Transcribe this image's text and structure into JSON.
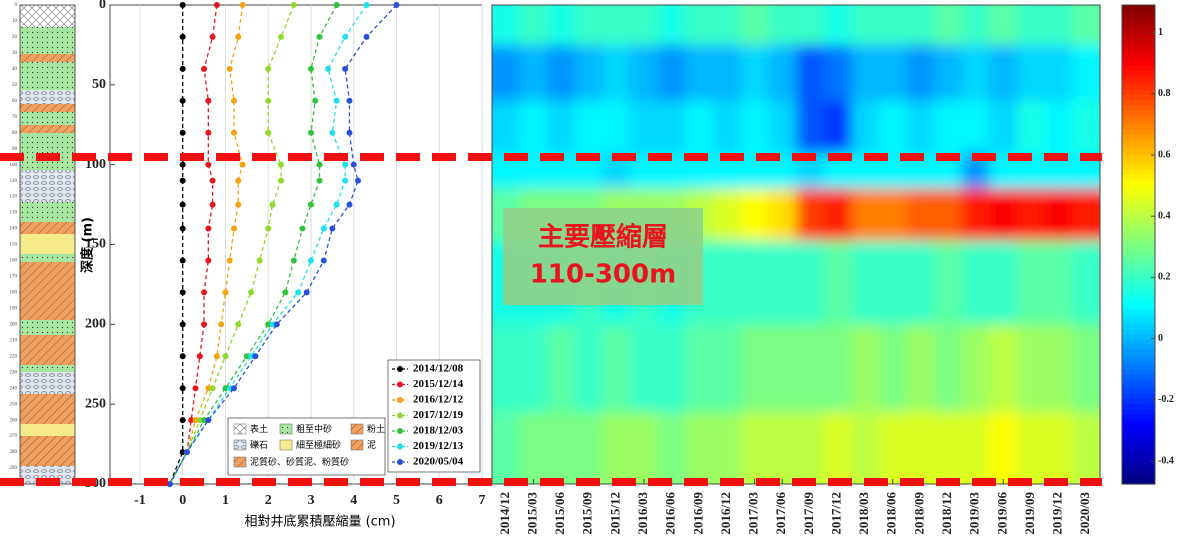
{
  "chart_data": [
    {
      "type": "line",
      "xlabel": "相對井底累積壓縮量 (cm)",
      "ylabel": "深度 (m)",
      "depths": [
        0,
        20,
        40,
        60,
        80,
        100,
        110,
        125,
        140,
        160,
        180,
        200,
        220,
        240,
        260,
        280,
        300
      ],
      "xlim": [
        -1.7,
        7
      ],
      "xticks": [
        -1,
        0,
        1,
        2,
        3,
        4,
        5,
        6,
        7
      ],
      "ylim": [
        0,
        300
      ],
      "yticks": [
        0,
        50,
        100,
        150,
        200,
        250,
        300
      ],
      "grid": true,
      "legend": "lower right",
      "series": [
        {
          "name": "2014/12/08",
          "color": "#000000",
          "values": [
            0,
            0,
            0,
            0,
            0,
            0,
            0,
            0,
            0,
            0,
            0,
            0,
            0,
            0,
            0,
            0,
            -0.3
          ]
        },
        {
          "name": "2015/12/14",
          "color": "#e8141e",
          "values": [
            0.8,
            0.7,
            0.5,
            0.6,
            0.6,
            0.6,
            0.7,
            0.7,
            0.6,
            0.6,
            0.5,
            0.5,
            0.4,
            0.3,
            0.2,
            0.1,
            -0.3
          ]
        },
        {
          "name": "2016/12/12",
          "color": "#f5a310",
          "values": [
            1.4,
            1.3,
            1.1,
            1.2,
            1.2,
            1.4,
            1.3,
            1.3,
            1.2,
            1.1,
            1.0,
            0.9,
            0.8,
            0.6,
            0.3,
            0.1,
            -0.3
          ]
        },
        {
          "name": "2017/12/19",
          "color": "#8fd92a",
          "values": [
            2.6,
            2.3,
            2.0,
            2.0,
            2.0,
            2.3,
            2.3,
            2.1,
            2.0,
            1.8,
            1.6,
            1.3,
            1.0,
            0.7,
            0.4,
            0.1,
            -0.3
          ]
        },
        {
          "name": "2018/12/03",
          "color": "#2fc23a",
          "values": [
            3.6,
            3.2,
            3.0,
            3.1,
            3.0,
            3.2,
            3.2,
            3.0,
            2.8,
            2.6,
            2.4,
            2.0,
            1.5,
            1.0,
            0.5,
            0.1,
            -0.3
          ]
        },
        {
          "name": "2019/12/13",
          "color": "#1ee0e8",
          "values": [
            4.3,
            3.8,
            3.4,
            3.6,
            3.5,
            3.8,
            3.8,
            3.6,
            3.3,
            3.0,
            2.7,
            2.1,
            1.6,
            1.1,
            0.6,
            0.1,
            -0.3
          ]
        },
        {
          "name": "2020/05/04",
          "color": "#2a4fd8",
          "values": [
            5.0,
            4.3,
            3.8,
            3.9,
            3.9,
            4.0,
            4.1,
            3.9,
            3.5,
            3.3,
            2.9,
            2.2,
            1.7,
            1.2,
            0.6,
            0.1,
            -0.3
          ]
        }
      ]
    },
    {
      "type": "heatmap",
      "categories": [
        "2014/12",
        "2015/03",
        "2015/06",
        "2015/09",
        "2015/12",
        "2016/03",
        "2016/06",
        "2016/09",
        "2016/12",
        "2017/03",
        "2017/06",
        "2017/09",
        "2017/12",
        "2018/03",
        "2018/06",
        "2018/09",
        "2018/12",
        "2019/03",
        "2019/06",
        "2019/09",
        "2019/12",
        "2020/03"
      ],
      "y": [
        10,
        40,
        80,
        105,
        125,
        170,
        230,
        280
      ],
      "ylim": [
        0,
        300
      ],
      "z": [
        [
          0.15,
          0.2,
          0.15,
          0.2,
          0.2,
          0.2,
          0.15,
          0.2,
          0.2,
          0.25,
          0.2,
          0.2,
          0.15,
          0.2,
          0.2,
          0.2,
          0.25,
          0.2,
          0.25,
          0.2,
          0.2,
          0.25
        ],
        [
          -0.05,
          0,
          -0.05,
          0,
          0.05,
          0,
          -0.05,
          0,
          0,
          0.05,
          0,
          -0.15,
          -0.1,
          0,
          0,
          -0.05,
          0,
          0.05,
          0,
          0.05,
          0.05,
          0.1
        ],
        [
          0.05,
          0.1,
          0.05,
          0.1,
          0.1,
          0.05,
          0.05,
          0.1,
          0.05,
          0.1,
          0.05,
          -0.15,
          -0.2,
          0.05,
          0.1,
          0.05,
          0.1,
          0.1,
          0.05,
          0.15,
          0.1,
          0.15
        ],
        [
          0.1,
          0.1,
          0.1,
          0.1,
          0.05,
          0.1,
          0.1,
          0.1,
          0.1,
          0.1,
          0.1,
          0.05,
          0.1,
          0.1,
          0.1,
          0.1,
          0.1,
          -0.05,
          0.1,
          0.1,
          0.1,
          0.1
        ],
        [
          0.25,
          0.3,
          0.3,
          0.3,
          0.35,
          0.35,
          0.35,
          0.4,
          0.45,
          0.5,
          0.55,
          0.8,
          0.85,
          0.7,
          0.7,
          0.75,
          0.75,
          0.85,
          0.9,
          0.85,
          0.9,
          0.85
        ],
        [
          0.15,
          0.15,
          0.15,
          0.2,
          0.15,
          0.2,
          0.15,
          0.2,
          0.2,
          0.2,
          0.2,
          0.2,
          0.25,
          0.2,
          0.2,
          0.2,
          0.25,
          0.2,
          0.2,
          0.25,
          0.25,
          0.2
        ],
        [
          0.2,
          0.2,
          0.25,
          0.2,
          0.25,
          0.2,
          0.2,
          0.25,
          0.25,
          0.3,
          0.3,
          0.3,
          0.3,
          0.35,
          0.3,
          0.35,
          0.3,
          0.35,
          0.4,
          0.35,
          0.35,
          0.3
        ],
        [
          0.25,
          0.3,
          0.3,
          0.3,
          0.35,
          0.35,
          0.3,
          0.35,
          0.35,
          0.4,
          0.4,
          0.4,
          0.45,
          0.4,
          0.45,
          0.45,
          0.45,
          0.45,
          0.5,
          0.45,
          0.45,
          0.4
        ]
      ],
      "clim": [
        -0.475,
        1.09
      ],
      "cticks": [
        -0.4,
        -0.2,
        0,
        0.2,
        0.4,
        0.6,
        0.8,
        1
      ],
      "annotation": [
        "主要壓縮層",
        "110-300m"
      ]
    }
  ],
  "strata_ticks": [
    0,
    10,
    20,
    30,
    40,
    50,
    60,
    70,
    80,
    90,
    100,
    110,
    120,
    130,
    140,
    150,
    160,
    170,
    180,
    190,
    200,
    210,
    220,
    230,
    240,
    250,
    260,
    270,
    280,
    290,
    300
  ],
  "lithology_legend": [
    "表土",
    "粗至中砂",
    "粉土",
    "礫石",
    "細至極細砂",
    "泥",
    "泥質砂、砂質泥、粉質砂"
  ]
}
